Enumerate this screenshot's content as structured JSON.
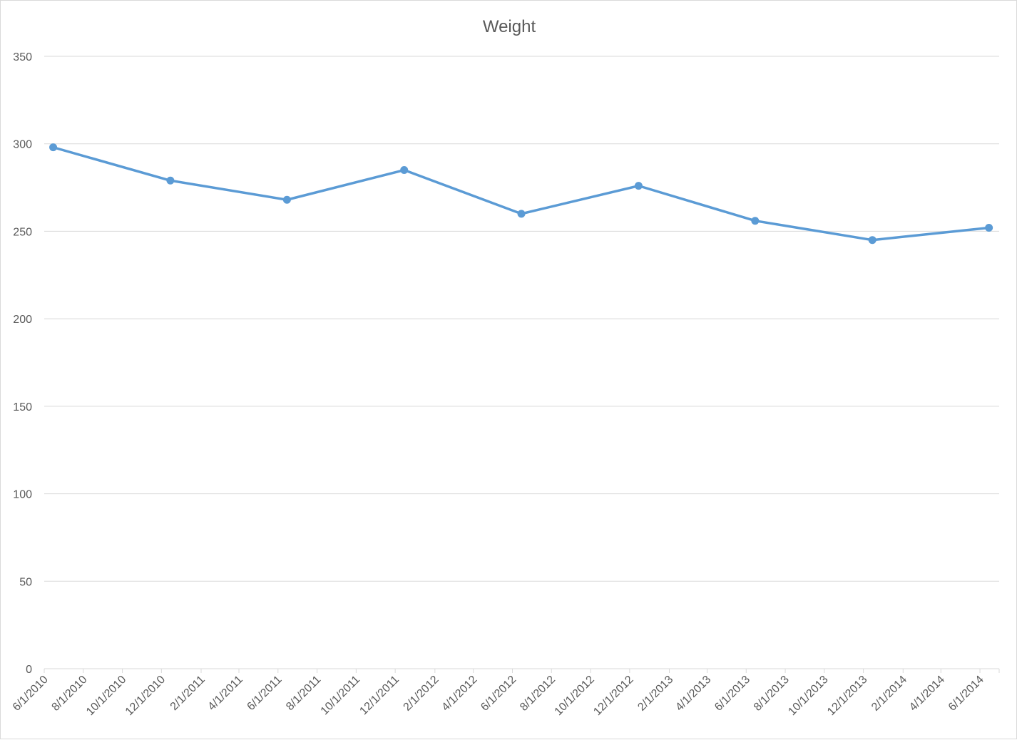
{
  "chart_data": {
    "type": "line",
    "title": "Weight",
    "xlabel": "",
    "ylabel": "",
    "ylim": [
      0,
      350
    ],
    "yticks": [
      0,
      50,
      100,
      150,
      200,
      250,
      300,
      350
    ],
    "xlim": [
      "6/1/2010",
      "7/1/2014"
    ],
    "xticks": [
      "6/1/2010",
      "8/1/2010",
      "10/1/2010",
      "12/1/2010",
      "2/1/2011",
      "4/1/2011",
      "6/1/2011",
      "8/1/2011",
      "10/1/2011",
      "12/1/2011",
      "2/1/2012",
      "4/1/2012",
      "6/1/2012",
      "8/1/2012",
      "10/1/2012",
      "12/1/2012",
      "2/1/2013",
      "4/1/2013",
      "6/1/2013",
      "8/1/2013",
      "10/1/2013",
      "12/1/2013",
      "2/1/2014",
      "4/1/2014",
      "6/1/2014"
    ],
    "grid": true,
    "legend": "none",
    "series": [
      {
        "color": "#5b9bd5",
        "x": [
          "6/15/2010",
          "12/15/2010",
          "6/15/2011",
          "12/15/2011",
          "6/15/2012",
          "12/15/2012",
          "6/15/2013",
          "12/15/2013",
          "6/15/2014"
        ],
        "values": [
          298,
          279,
          268,
          285,
          260,
          276,
          256,
          245,
          252
        ]
      }
    ]
  }
}
